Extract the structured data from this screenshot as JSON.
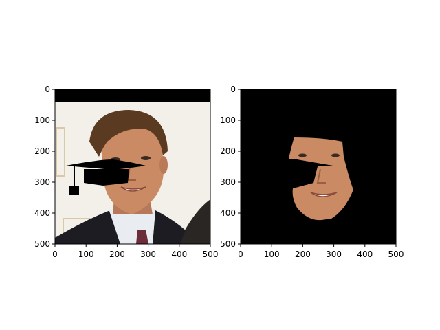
{
  "figure": {
    "panels": [
      {
        "name": "left",
        "x_ticks": [
          "0",
          "100",
          "200",
          "300",
          "400",
          "500"
        ],
        "y_ticks": [
          "0",
          "100",
          "200",
          "300",
          "400",
          "500"
        ]
      },
      {
        "name": "right",
        "x_ticks": [
          "0",
          "100",
          "200",
          "300",
          "400",
          "500"
        ],
        "y_ticks": [
          "0",
          "100",
          "200",
          "300",
          "400",
          "500"
        ]
      }
    ],
    "tick_values": [
      0,
      100,
      200,
      300,
      400,
      500
    ],
    "axis_range": [
      0,
      500
    ]
  },
  "colors": {
    "background": "#ffffff",
    "mask": "#000000",
    "skin": "#c98a64",
    "hair": "#5a3a20",
    "suit": "#1d1c22",
    "shirt": "#e9edf2",
    "tie": "#6b2d3a",
    "wall": "#f2f0e8"
  },
  "icons": [
    "graduation-cap-icon"
  ]
}
